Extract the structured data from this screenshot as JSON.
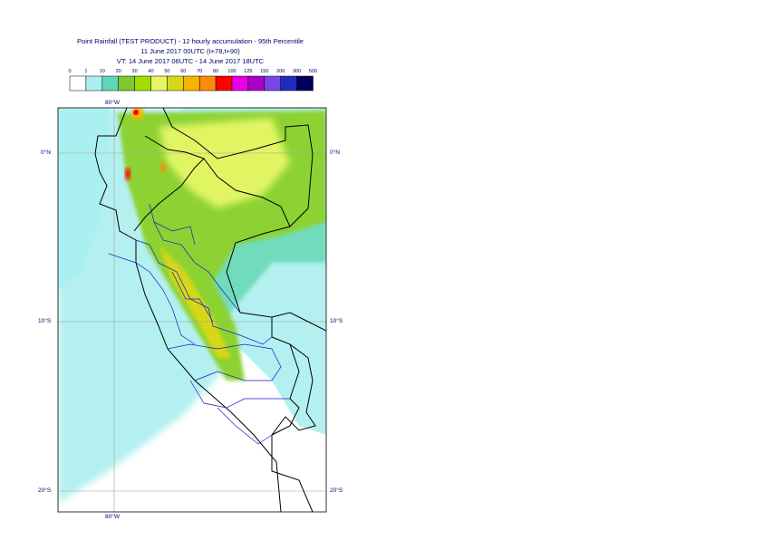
{
  "title": {
    "line1": "Point Rainfall (TEST PRODUCT) - 12 hourly accumulation - 95th Percentile",
    "line2": "11 June 2017 00UTC (t+78,t+90)",
    "line3": "VT: 14 June 2017 06UTC - 14 June 2017 18UTC"
  },
  "legend": {
    "thresholds": [
      "0",
      "1",
      "10",
      "20",
      "30",
      "40",
      "50",
      "60",
      "70",
      "80",
      "100",
      "125",
      "150",
      "200",
      "300",
      "500"
    ],
    "colors": [
      "#ffffff",
      "#aaf0f0",
      "#5ed7b4",
      "#7dc832",
      "#a0dc00",
      "#e6f564",
      "#d7d719",
      "#f5b400",
      "#fa8c0a",
      "#ff0000",
      "#e600e6",
      "#aa00c8",
      "#7846e6",
      "#1e2dbe",
      "#00005a"
    ]
  },
  "map": {
    "lon_labels": [
      "80°W"
    ],
    "lat_labels": [
      "0°N",
      "10°S",
      "20°S"
    ],
    "colors": {
      "ocean": "#b4f0f0",
      "land_light": "#7fe0c0",
      "green": "#8cd232",
      "yellow": "#e1f564",
      "border": "#000000",
      "admin": "#1a1acd"
    }
  }
}
